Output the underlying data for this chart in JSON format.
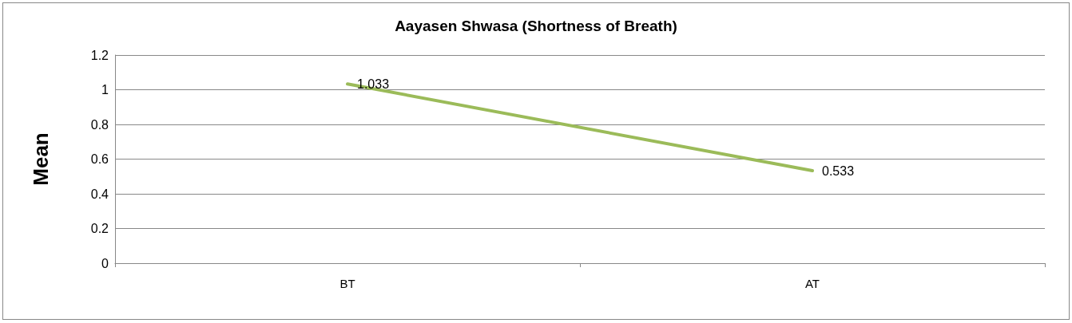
{
  "chart_data": {
    "type": "line",
    "title": "Aayasen Shwasa (Shortness of Breath)",
    "ylabel": "Mean",
    "categories": [
      "BT",
      "AT"
    ],
    "series": [
      {
        "color": "#9bbb59",
        "values": [
          1.033,
          0.533
        ]
      }
    ],
    "ylim": [
      0,
      1.2
    ],
    "yticks": [
      0,
      0.2,
      0.4,
      0.6,
      0.8,
      1,
      1.2
    ],
    "grid": "y",
    "marker": "none",
    "line_style": "solid",
    "data_labels": true
  }
}
